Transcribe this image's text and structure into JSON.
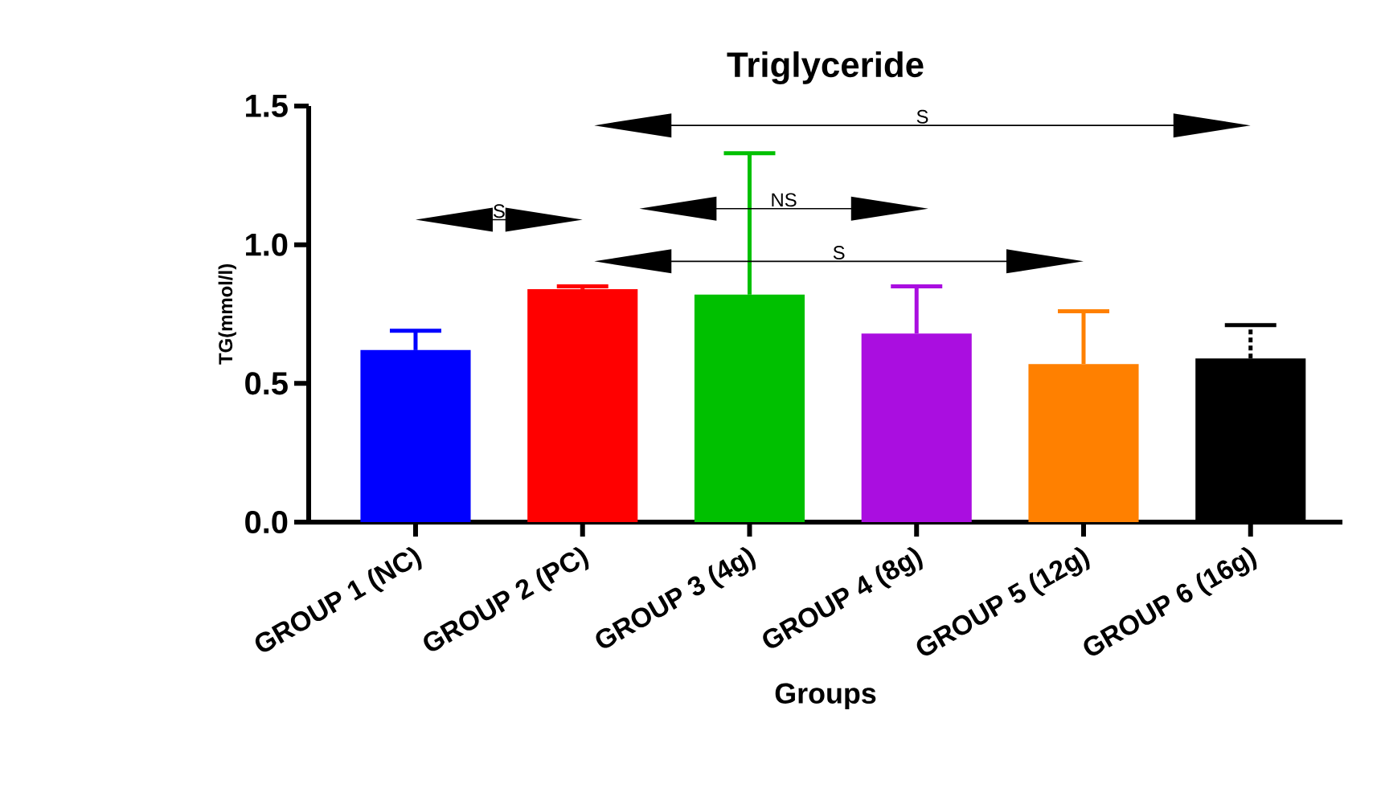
{
  "chart_data": {
    "type": "bar",
    "title": "Triglyceride",
    "xlabel": "Groups",
    "ylabel": "TG(mmol/l)",
    "categories": [
      "GROUP 1 (NC)",
      "GROUP 2 (PC)",
      "GROUP 3 (4g)",
      "GROUP 4 (8g)",
      "GROUP 5 (12g)",
      "GROUP 6 (16g)"
    ],
    "values": [
      0.62,
      0.84,
      0.82,
      0.68,
      0.57,
      0.59
    ],
    "errors": [
      [
        0.62,
        0.69
      ],
      [
        0.84,
        0.85
      ],
      [
        0.82,
        1.33
      ],
      [
        0.68,
        0.85
      ],
      [
        0.57,
        0.76
      ],
      [
        0.59,
        0.71
      ]
    ],
    "colors": [
      "#0000ff",
      "#ff0000",
      "#00c000",
      "#aa0ee0",
      "#ff8000",
      "#000000"
    ],
    "ylim": [
      0,
      1.5
    ],
    "yticks": [
      {
        "value": 0,
        "label": "0.0"
      },
      0.5,
      {
        "value": 1,
        "label": "1.0"
      },
      1.5
    ],
    "annotations": [
      "S",
      "S",
      "NS",
      "S"
    ]
  }
}
